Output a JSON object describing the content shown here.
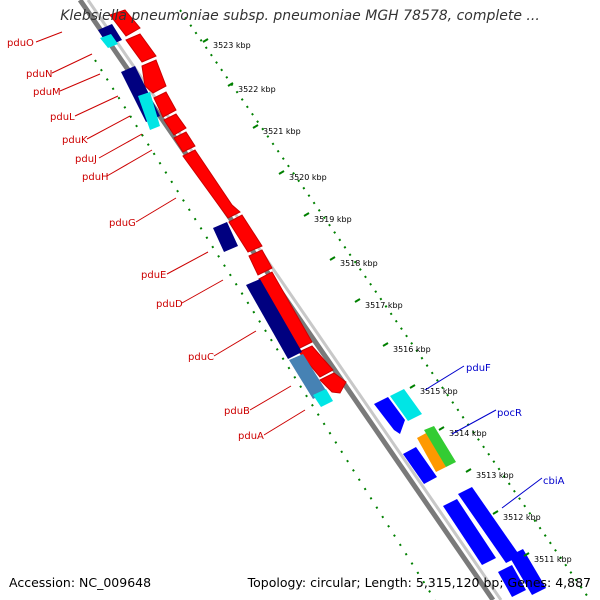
{
  "title": "Klebsiella pneumoniae subsp. pneumoniae MGH 78578, complete ...",
  "footer": {
    "accession": "Accession: NC_009648",
    "summary": "Topology: circular; Length: 5,315,120 bp; Genes: 4,887"
  },
  "ruler_labels": [
    "3523 kbp",
    "3522 kbp",
    "3521 kbp",
    "3520 kbp",
    "3519 kbp",
    "3518 kbp",
    "3517 kbp",
    "3516 kbp",
    "3515 kbp",
    "3514 kbp",
    "3513 kbp",
    "3512 kbp",
    "3511 kbp"
  ],
  "genes": [
    {
      "name": "pduO",
      "color": "#cc0000"
    },
    {
      "name": "pduN",
      "color": "#cc0000"
    },
    {
      "name": "pduM",
      "color": "#cc0000"
    },
    {
      "name": "pduL",
      "color": "#cc0000"
    },
    {
      "name": "pduK",
      "color": "#cc0000"
    },
    {
      "name": "pduJ",
      "color": "#cc0000"
    },
    {
      "name": "pduH",
      "color": "#cc0000"
    },
    {
      "name": "pduG",
      "color": "#cc0000"
    },
    {
      "name": "pduE",
      "color": "#cc0000"
    },
    {
      "name": "pduD",
      "color": "#cc0000"
    },
    {
      "name": "pduC",
      "color": "#cc0000"
    },
    {
      "name": "pduB",
      "color": "#cc0000"
    },
    {
      "name": "pduA",
      "color": "#cc0000"
    },
    {
      "name": "pduF",
      "color": "#0000cc"
    },
    {
      "name": "pocR",
      "color": "#0000cc"
    },
    {
      "name": "cbiA",
      "color": "#0000cc"
    }
  ],
  "colors": {
    "red_gene": "#ff0000",
    "navy_gene": "#000080",
    "blue_gene": "#0000ff",
    "cyan_gene": "#00e5e5",
    "steel_gene": "#4682b4",
    "orange_gene": "#ff9900",
    "green_gene": "#33cc33",
    "backbone": "#808080",
    "ruler_dots": "#008000"
  }
}
